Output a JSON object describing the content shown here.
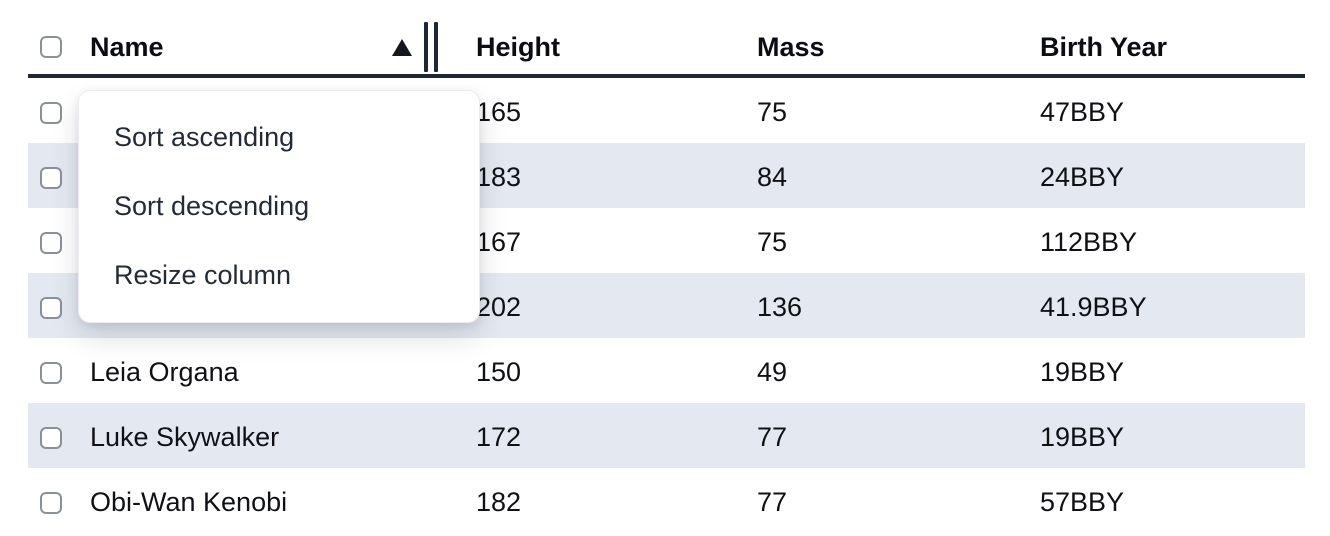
{
  "table": {
    "columns": [
      {
        "label": "Name"
      },
      {
        "label": "Height"
      },
      {
        "label": "Mass"
      },
      {
        "label": "Birth Year"
      }
    ],
    "sort": {
      "column": "Name",
      "direction": "ascending"
    },
    "rows": [
      {
        "name": "",
        "height": "165",
        "mass": "75",
        "birth_year": "47BBY",
        "name_hidden_by_menu": true
      },
      {
        "name": "",
        "height": "183",
        "mass": "84",
        "birth_year": "24BBY",
        "name_hidden_by_menu": true
      },
      {
        "name": "",
        "height": "167",
        "mass": "75",
        "birth_year": "112BBY",
        "name_hidden_by_menu": true
      },
      {
        "name": "",
        "height": "202",
        "mass": "136",
        "birth_year": "41.9BBY",
        "name_hidden_by_menu": true
      },
      {
        "name": "Leia Organa",
        "height": "150",
        "mass": "49",
        "birth_year": "19BBY",
        "name_hidden_by_menu": false
      },
      {
        "name": "Luke Skywalker",
        "height": "172",
        "mass": "77",
        "birth_year": "19BBY",
        "name_hidden_by_menu": false
      },
      {
        "name": "Obi-Wan Kenobi",
        "height": "182",
        "mass": "77",
        "birth_year": "57BBY",
        "name_hidden_by_menu": false
      }
    ]
  },
  "context_menu": {
    "items": [
      {
        "label": "Sort ascending"
      },
      {
        "label": "Sort descending"
      },
      {
        "label": "Resize column"
      }
    ]
  },
  "icons": {
    "sort_indicator": "triangle-up",
    "resize_handle": "double-vertical-bars",
    "checkbox": "empty-rounded-square"
  },
  "colors": {
    "header_border": "#1f2733",
    "stripe": "#e4e9f1",
    "cell_text": "#101114",
    "menu_text": "#242b36",
    "checkbox_border": "#8a9099",
    "background": "#ffffff"
  }
}
